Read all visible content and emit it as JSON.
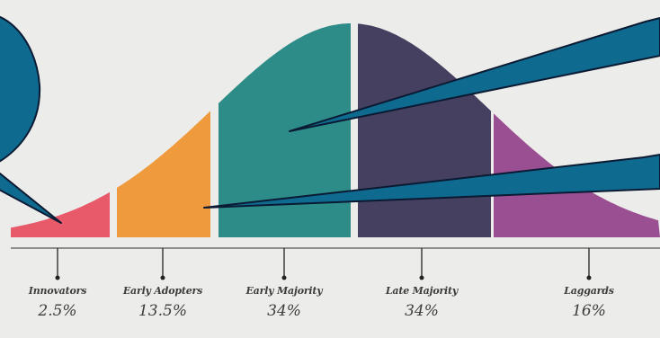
{
  "colors": {
    "background": "#ecedea",
    "baseline": "#8e8e8e",
    "innovators": "#e8596a",
    "early_adopters": "#ef9a3d",
    "early_majority": "#2d8c88",
    "late_majority": "#45405f",
    "laggards": "#9a4f92",
    "callout": "#0f6a90",
    "callout_outline": "#0b1a33",
    "text": "#3d3d3d"
  },
  "categories": [
    {
      "label": "Innovators",
      "percent": "2.5%"
    },
    {
      "label": "Early Adopters",
      "percent": "13.5%"
    },
    {
      "label": "Early Majority",
      "percent": "34%"
    },
    {
      "label": "Late Majority",
      "percent": "34%"
    },
    {
      "label": "Laggards",
      "percent": "16%"
    }
  ]
}
